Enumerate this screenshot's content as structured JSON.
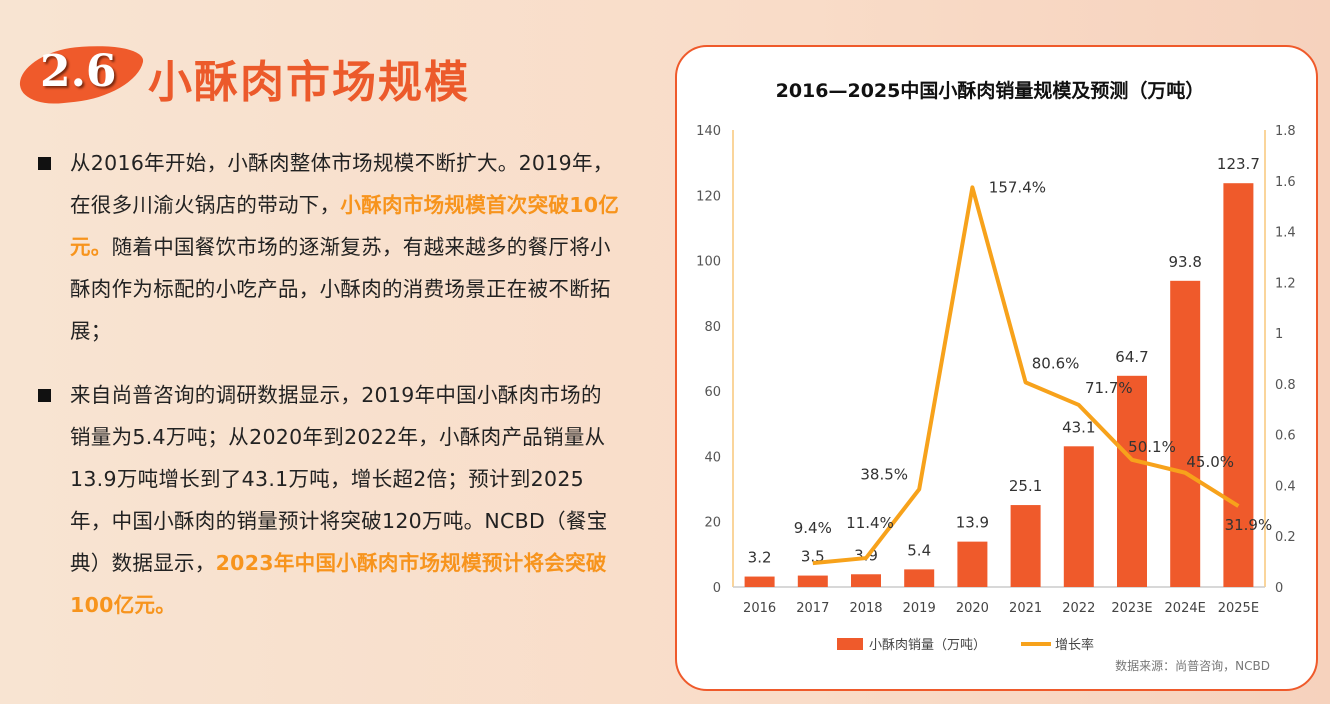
{
  "header": {
    "section_number": "2.6",
    "title": "小酥肉市场规模"
  },
  "paragraphs": [
    {
      "parts": [
        {
          "t": "从2016年开始，小酥肉整体市场规模不断扩大。2019年，在很多川渝火锅店的带动下，",
          "hl": false
        },
        {
          "t": "小酥肉市场规模首次突破10亿元。",
          "hl": true
        },
        {
          "t": "随着中国餐饮市场的逐渐复苏，有越来越多的餐厅将小酥肉作为标配的小吃产品，小酥肉的消费场景正在被不断拓展；",
          "hl": false
        }
      ]
    },
    {
      "parts": [
        {
          "t": "来自尚普咨询的调研数据显示，2019年中国小酥肉市场的销量为5.4万吨；从2020年到2022年，小酥肉产品销量从13.9万吨增长到了43.1万吨，增长超2倍；预计到2025年，中国小酥肉的销量预计将突破120万吨。NCBD（餐宝典）数据显示，",
          "hl": false
        },
        {
          "t": "2023年中国小酥肉市场规模预计将会突破100亿元。",
          "hl": true
        }
      ]
    }
  ],
  "colors": {
    "accent": "#ef5a2b",
    "highlight": "#f7941d",
    "line": "#f7a21b",
    "axis": "#f9c77a"
  },
  "chart_data": {
    "type": "bar+line",
    "title": "2016—2025中国小酥肉销量规模及预测（万吨）",
    "categories": [
      "2016",
      "2017",
      "2018",
      "2019",
      "2020",
      "2021",
      "2022",
      "2023E",
      "2024E",
      "2025E"
    ],
    "series": [
      {
        "name": "小酥肉销量（万吨）",
        "type": "bar",
        "axis": "left",
        "values": [
          3.2,
          3.5,
          3.9,
          5.4,
          13.9,
          25.1,
          43.1,
          64.7,
          93.8,
          123.7
        ],
        "labels": [
          "3.2",
          "3.5",
          "3.9",
          "5.4",
          "13.9",
          "25.1",
          "43.1",
          "64.7",
          "93.8",
          "123.7"
        ]
      },
      {
        "name": "增长率",
        "type": "line",
        "axis": "right",
        "values": [
          null,
          0.094,
          0.114,
          0.385,
          1.574,
          0.806,
          0.717,
          0.501,
          0.45,
          0.319
        ],
        "labels": [
          null,
          "9.4%",
          "11.4%",
          "38.5%",
          "157.4%",
          "80.6%",
          "71.7%",
          "50.1%",
          "45.0%",
          "31.9%"
        ]
      }
    ],
    "y_left": {
      "range": [
        0,
        140
      ],
      "ticks": [
        "0",
        "20",
        "40",
        "60",
        "80",
        "100",
        "120",
        "140"
      ]
    },
    "y_right": {
      "range": [
        0,
        1.8
      ],
      "ticks": [
        "0",
        "0.2",
        "0.4",
        "0.6",
        "0.8",
        "1",
        "1.2",
        "1.4",
        "1.6",
        "1.8"
      ]
    },
    "legend_placement": "bottom",
    "grid": false,
    "source": "数据来源：尚普咨询，NCBD"
  }
}
